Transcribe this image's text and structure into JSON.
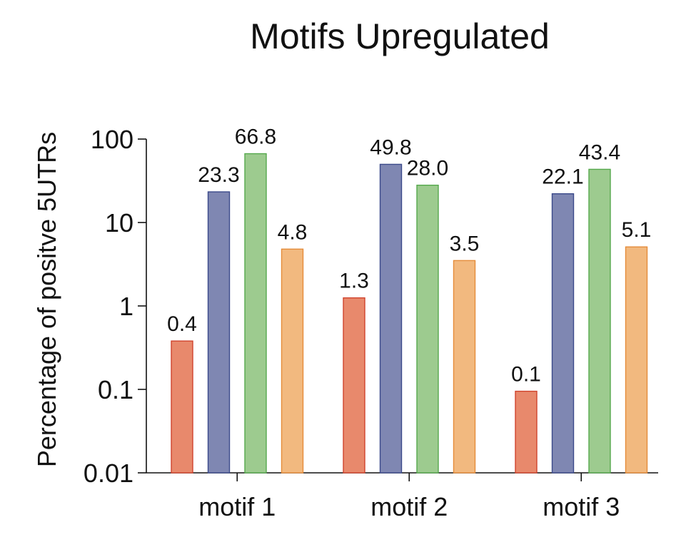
{
  "chart_data": {
    "type": "bar",
    "title": "Motifs Upregulated",
    "xlabel": "",
    "ylabel": "Percentage of positve 5UTRs",
    "yscale": "log",
    "ylim": [
      0.01,
      100
    ],
    "yticks": [
      {
        "value": 100,
        "label": "100"
      },
      {
        "value": 10,
        "label": "10"
      },
      {
        "value": 1,
        "label": "1"
      },
      {
        "value": 0.1,
        "label": "0.1"
      },
      {
        "value": 0.01,
        "label": "0.01"
      }
    ],
    "categories": [
      "motif 1",
      "motif 2",
      "motif 3"
    ],
    "series": [
      {
        "values": [
          0.38,
          1.25,
          0.095
        ],
        "labels": [
          "0.4",
          "1.3",
          "0.1"
        ],
        "color": "#e8896c",
        "stroke": "#d0442e"
      },
      {
        "values": [
          23.3,
          49.8,
          22.1
        ],
        "labels": [
          "23.3",
          "49.8",
          "22.1"
        ],
        "color": "#7f87b2",
        "stroke": "#3b4a8a"
      },
      {
        "values": [
          66.8,
          28.0,
          43.4
        ],
        "labels": [
          "66.8",
          "28.0",
          "43.4"
        ],
        "color": "#9dcb8f",
        "stroke": "#55a84c"
      },
      {
        "values": [
          4.8,
          3.5,
          5.1
        ],
        "labels": [
          "4.8",
          "3.5",
          "5.1"
        ],
        "color": "#f2b97f",
        "stroke": "#e58c3a"
      }
    ],
    "grid": false,
    "legend": "none"
  }
}
